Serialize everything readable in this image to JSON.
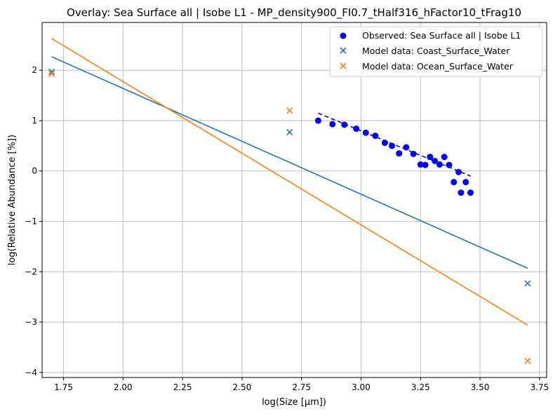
{
  "chart_data": {
    "type": "scatter",
    "title": "Overlay: Sea Surface all | Isobe L1 - MP_density900_FI0.7_tHalf316_hFactor10_tFrag10",
    "xlabel": "log(Size [µm])",
    "ylabel": "log(Relative Abundance [%])",
    "xlim": [
      1.66,
      3.78
    ],
    "ylim": [
      -4.1,
      2.95
    ],
    "xticks": [
      "1.75",
      "2.00",
      "2.25",
      "2.50",
      "2.75",
      "3.00",
      "3.25",
      "3.50",
      "3.75"
    ],
    "xtick_values": [
      1.75,
      2.0,
      2.25,
      2.5,
      2.75,
      3.0,
      3.25,
      3.5,
      3.75
    ],
    "yticks": [
      "−4",
      "−3",
      "−2",
      "−1",
      "0",
      "1",
      "2"
    ],
    "ytick_values": [
      -4,
      -3,
      -2,
      -1,
      0,
      1,
      2
    ],
    "grid": true,
    "legend_position": "top-right",
    "series": [
      {
        "name": "Observed: Sea Surface all | Isobe L1",
        "kind": "scatter",
        "marker": "circle",
        "color": "#0000ff",
        "x": [
          2.82,
          2.88,
          2.93,
          2.98,
          3.02,
          3.06,
          3.1,
          3.13,
          3.16,
          3.19,
          3.22,
          3.25,
          3.27,
          3.29,
          3.31,
          3.33,
          3.35,
          3.37,
          3.39,
          3.41,
          3.42,
          3.44,
          3.46
        ],
        "y": [
          1.0,
          0.93,
          0.92,
          0.84,
          0.76,
          0.7,
          0.56,
          0.5,
          0.35,
          0.47,
          0.34,
          0.13,
          0.12,
          0.28,
          0.2,
          0.13,
          0.28,
          0.12,
          -0.22,
          -0.02,
          -0.43,
          -0.22,
          -0.43
        ]
      },
      {
        "name": "Model data: Coast_Surface_Water",
        "kind": "scatter",
        "marker": "x",
        "color": "#1f77b4",
        "x": [
          1.7,
          2.7,
          3.7
        ],
        "y": [
          1.97,
          0.77,
          -2.23
        ]
      },
      {
        "name": "Model data: Ocean_Surface_Water",
        "kind": "scatter",
        "marker": "x",
        "color": "#ff7f0e",
        "x": [
          1.7,
          2.7,
          3.7
        ],
        "y": [
          1.93,
          1.2,
          -3.77
        ]
      }
    ],
    "lines": [
      {
        "kind": "dashed-fit",
        "color": "#0000ff",
        "x": [
          2.82,
          3.46
        ],
        "y": [
          1.15,
          -0.1
        ]
      },
      {
        "kind": "fit",
        "color": "#1f77b4",
        "x": [
          1.7,
          3.7
        ],
        "y": [
          2.27,
          -1.93
        ]
      },
      {
        "kind": "fit",
        "color": "#ff7f0e",
        "x": [
          1.7,
          3.7
        ],
        "y": [
          2.63,
          -3.06
        ]
      }
    ]
  }
}
